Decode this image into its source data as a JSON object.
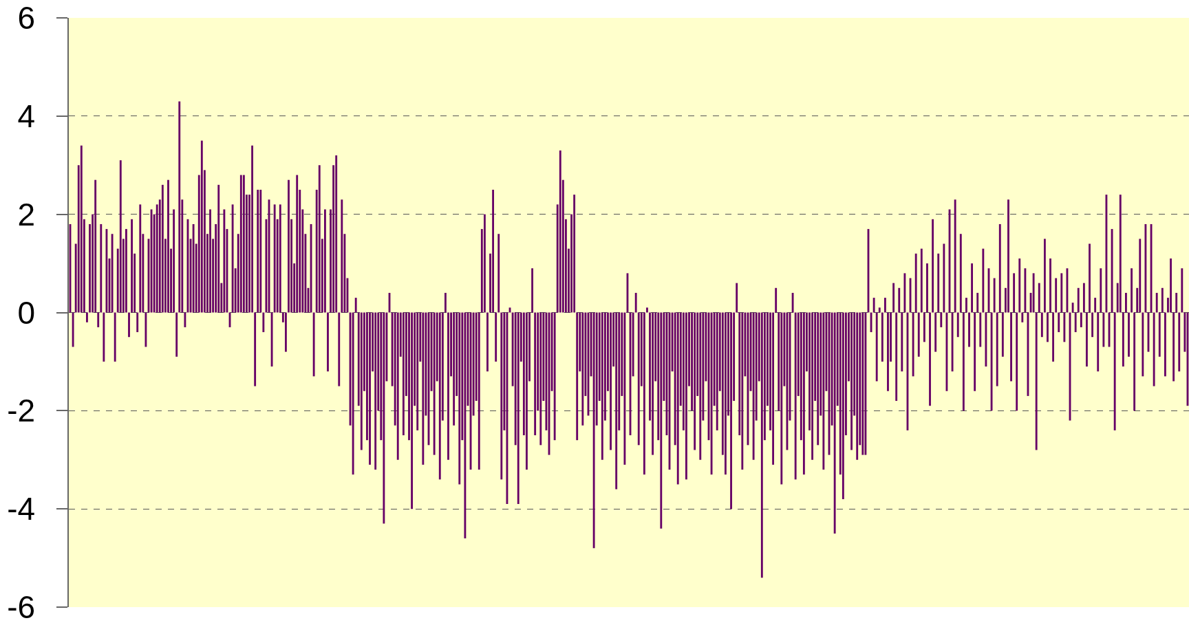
{
  "chart_data": {
    "type": "bar",
    "categories": [
      null,
      null,
      null,
      null,
      null,
      null,
      null,
      null,
      null,
      null,
      null,
      null,
      null,
      null,
      null,
      null,
      null,
      null,
      null,
      null,
      null,
      null,
      null,
      null,
      null,
      null,
      null,
      null,
      null,
      null,
      null,
      null,
      null,
      null,
      null,
      null,
      null,
      null,
      null,
      null,
      null,
      null,
      null,
      null,
      null,
      null,
      null,
      null,
      null,
      null,
      null,
      null,
      null,
      null,
      null,
      null,
      null,
      null,
      null,
      null,
      null,
      null,
      null,
      null,
      null,
      null,
      null,
      null,
      null,
      null,
      null,
      null,
      null,
      null,
      null,
      null,
      null,
      null,
      null,
      null,
      null,
      null,
      null,
      null,
      null,
      null,
      null,
      null,
      null,
      null,
      null,
      null,
      null,
      null,
      null,
      null,
      null,
      null,
      null,
      null,
      null,
      null,
      null,
      null,
      null,
      null,
      null,
      null,
      null,
      null,
      null,
      null,
      null,
      null,
      null,
      null,
      null,
      null,
      null,
      null,
      null,
      null,
      null,
      null,
      null,
      null,
      null,
      null,
      null,
      null,
      null,
      null,
      null,
      null,
      null,
      null,
      null,
      null,
      null,
      null,
      null,
      null,
      null,
      null,
      null,
      null,
      null,
      null,
      null,
      null,
      null,
      null,
      null,
      null,
      null,
      null,
      null,
      null,
      null,
      null,
      null,
      null,
      null,
      null,
      null,
      null,
      null,
      null,
      null,
      null,
      null,
      null,
      null,
      null,
      null,
      null,
      null,
      null,
      null,
      null,
      null,
      null,
      null,
      null,
      null,
      null,
      null,
      null,
      null,
      null,
      null,
      null,
      null,
      null,
      null,
      null,
      null,
      null,
      null,
      null,
      null,
      null,
      null,
      null,
      null,
      null,
      null,
      null,
      null,
      null,
      null,
      null,
      null,
      null,
      null,
      null,
      null,
      null,
      null,
      null,
      null,
      null,
      null,
      null,
      null,
      null,
      null,
      null,
      null,
      null,
      null,
      null,
      null,
      null,
      null,
      null,
      null,
      null,
      null,
      null,
      null,
      null,
      null,
      null,
      null,
      null,
      null,
      null,
      null,
      null,
      null,
      null,
      null,
      null,
      null,
      null,
      null,
      null,
      null,
      null,
      null,
      null,
      null,
      null,
      null,
      null,
      null,
      null,
      null,
      null,
      null,
      null,
      null,
      null,
      null,
      null,
      null,
      null,
      null,
      null,
      null,
      null,
      null,
      null,
      null,
      null,
      null,
      null,
      null,
      null,
      null,
      null,
      null,
      null,
      null,
      null,
      null,
      null,
      null,
      null,
      null,
      null,
      null,
      null,
      null,
      null,
      null,
      null,
      null,
      null,
      null,
      null,
      null,
      null,
      null,
      null,
      null,
      null,
      null,
      null,
      null,
      null,
      null,
      null,
      null,
      null,
      null,
      null,
      null,
      null,
      null,
      null,
      null,
      null,
      null,
      null,
      null,
      null,
      null,
      null,
      null,
      null,
      null,
      null,
      null,
      null,
      null,
      null,
      null,
      null,
      null,
      null,
      null,
      null,
      null,
      null,
      null,
      null,
      null,
      null,
      null,
      null,
      null,
      null,
      null,
      null,
      null,
      null,
      null,
      null,
      null,
      null,
      null,
      null,
      null,
      null,
      null,
      null,
      null,
      null,
      null,
      null,
      null,
      null,
      null,
      null,
      null,
      null,
      null,
      null,
      null,
      null,
      null,
      null,
      null,
      null,
      null,
      null,
      null,
      null
    ],
    "values": [
      1.8,
      -0.7,
      1.4,
      3.0,
      3.4,
      1.9,
      -0.2,
      1.8,
      2.0,
      2.7,
      -0.3,
      1.8,
      -1.0,
      1.7,
      1.1,
      1.6,
      -1.0,
      1.3,
      3.1,
      1.5,
      1.7,
      -0.5,
      1.9,
      1.2,
      -0.4,
      2.2,
      1.6,
      -0.7,
      1.5,
      2.1,
      2.0,
      2.2,
      2.3,
      2.6,
      1.5,
      2.7,
      1.3,
      2.1,
      -0.9,
      4.3,
      2.3,
      -0.3,
      1.9,
      1.5,
      1.8,
      1.4,
      2.8,
      3.5,
      2.9,
      1.6,
      2.1,
      1.5,
      1.8,
      2.6,
      0.6,
      2.1,
      1.7,
      -0.3,
      2.2,
      0.9,
      1.6,
      2.8,
      2.8,
      2.4,
      2.4,
      3.4,
      -1.5,
      2.5,
      2.5,
      -0.4,
      1.9,
      2.3,
      -1.1,
      2.2,
      1.9,
      2.2,
      -0.2,
      -0.8,
      2.7,
      1.9,
      1.0,
      2.8,
      2.5,
      2.1,
      1.6,
      0.5,
      1.8,
      -1.3,
      2.5,
      3.0,
      1.5,
      2.1,
      -1.2,
      2.1,
      3.0,
      3.2,
      -1.5,
      2.3,
      1.6,
      0.7,
      -2.3,
      -3.3,
      0.3,
      -1.9,
      -2.8,
      -1.6,
      -2.6,
      -3.1,
      -1.2,
      -3.2,
      -2.0,
      -2.6,
      -4.3,
      -1.4,
      0.4,
      -1.5,
      -2.3,
      -3.0,
      -0.9,
      -2.5,
      -1.7,
      -2.6,
      -4.0,
      -1.9,
      -2.4,
      -1.0,
      -3.1,
      -2.1,
      -2.7,
      -1.6,
      -2.9,
      -1.4,
      -3.4,
      -2.2,
      0.4,
      -3.0,
      -1.3,
      -2.3,
      -1.7,
      -3.5,
      -2.6,
      -4.6,
      -1.9,
      -3.2,
      -2.1,
      -1.8,
      -3.2,
      1.7,
      2.0,
      -1.2,
      1.2,
      2.5,
      -1.0,
      1.6,
      -3.4,
      -2.4,
      -3.9,
      0.1,
      -1.5,
      -2.7,
      -3.9,
      -1.0,
      -2.5,
      -3.2,
      -1.4,
      0.9,
      -2.5,
      -2.0,
      -2.7,
      -1.8,
      -2.4,
      -2.9,
      -1.6,
      -2.6,
      2.2,
      3.3,
      2.7,
      1.9,
      1.3,
      2.0,
      2.4,
      -2.6,
      -1.2,
      -2.3,
      -1.7,
      -2.1,
      -1.3,
      -4.8,
      -2.3,
      -1.8,
      -3.0,
      -2.2,
      -1.6,
      -2.8,
      -1.1,
      -3.6,
      -2.4,
      -1.7,
      -3.1,
      0.8,
      -2.5,
      -1.3,
      0.4,
      -2.7,
      -1.5,
      -3.3,
      0.1,
      -2.2,
      -2.9,
      -1.4,
      -2.6,
      -4.4,
      -1.8,
      -2.5,
      -3.2,
      -1.2,
      -2.7,
      -3.5,
      -1.9,
      -2.4,
      -3.4,
      -1.5,
      -2.0,
      -2.8,
      -1.7,
      -3.0,
      -2.2,
      -1.4,
      -2.6,
      -3.3,
      -1.9,
      -2.4,
      -1.6,
      -2.9,
      -3.3,
      -2.1,
      -4.0,
      -1.8,
      0.6,
      -2.5,
      -3.2,
      -1.3,
      -2.7,
      -1.6,
      -3.0,
      -2.2,
      -1.4,
      -5.4,
      -2.6,
      -1.9,
      -2.4,
      -3.1,
      0.5,
      -2.0,
      -3.5,
      -1.5,
      -2.8,
      -2.2,
      0.4,
      -3.4,
      -1.7,
      -2.6,
      -3.3,
      -1.2,
      -2.4,
      -3.0,
      -1.8,
      -2.7,
      -2.1,
      -3.2,
      -1.6,
      -2.9,
      -2.3,
      -4.5,
      -1.9,
      -3.3,
      -3.8,
      -2.5,
      -1.4,
      -2.8,
      -2.1,
      -3.0,
      -2.7,
      -2.9,
      -2.9,
      1.7,
      -0.4,
      0.3,
      -1.4,
      0.1,
      -1.0,
      0.3,
      -1.6,
      -1.0,
      0.6,
      -1.8,
      0.5,
      -1.2,
      0.8,
      -2.4,
      0.7,
      -1.3,
      1.2,
      -0.9,
      1.3,
      -0.6,
      1.0,
      -1.9,
      1.9,
      -0.8,
      1.2,
      -0.3,
      1.4,
      -1.6,
      2.1,
      -1.2,
      2.3,
      -0.5,
      1.6,
      -2.0,
      0.3,
      -0.7,
      1.0,
      -1.6,
      0.4,
      -0.7,
      1.3,
      -1.1,
      0.9,
      -2.0,
      0.7,
      -1.5,
      1.8,
      -0.9,
      0.5,
      2.3,
      -1.4,
      0.8,
      -2.0,
      1.1,
      -0.2,
      0.9,
      -1.7,
      0.4,
      0.8,
      -2.8,
      0.6,
      -0.5,
      1.5,
      -0.6,
      1.1,
      -1.0,
      0.7,
      -0.4,
      0.8,
      -0.6,
      0.9,
      -2.2,
      0.2,
      -0.4,
      0.5,
      -0.3,
      0.6,
      -1.1,
      1.4,
      -0.5,
      0.3,
      -1.2,
      0.9,
      -0.7,
      2.4,
      -0.7,
      1.7,
      -2.4,
      0.6,
      2.4,
      -1.1,
      0.4,
      -0.9,
      0.9,
      -2.0,
      0.5,
      1.5,
      -1.3,
      1.8,
      -0.8,
      1.8,
      -1.5,
      0.4,
      -0.9,
      0.5,
      -1.3,
      0.3,
      1.1,
      -1.4,
      0.4,
      -1.2,
      0.9,
      -0.8,
      -1.9
    ],
    "color": "#660066",
    "ylim": [
      -6,
      6
    ],
    "yticks": [
      -6,
      -4,
      -2,
      0,
      2,
      4,
      6
    ],
    "grid": "y",
    "tick_labels": "y"
  }
}
